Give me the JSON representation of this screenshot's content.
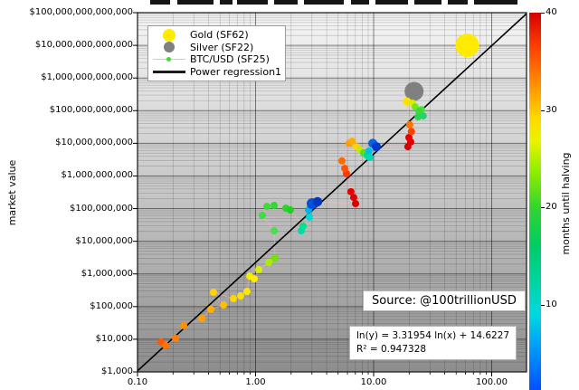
{
  "chart_data": {
    "type": "scatter",
    "x_scale": "log",
    "y_scale": "log",
    "xlim": [
      0.1,
      197
    ],
    "ylim": [
      1000,
      100000000000000
    ],
    "xlabel": "",
    "ylabel": "market value",
    "grid": true,
    "x_ticks": {
      "values": [
        0.1,
        1,
        10,
        100
      ],
      "labels": [
        "0.10",
        "1.00",
        "10.00",
        "100.00"
      ]
    },
    "y_ticks": {
      "values": [
        1000,
        10000,
        100000,
        1000000,
        10000000,
        100000000,
        1000000000,
        10000000000,
        100000000000,
        1000000000000,
        10000000000000,
        100000000000000
      ],
      "labels": [
        "$1,000",
        "$10,000",
        "$100,000",
        "$1,000,000",
        "$10,000,000",
        "$100,000,000",
        "$1,000,000,000",
        "$10,000,000,000",
        "$100,000,000,000",
        "$1,000,000,000,000",
        "$10,000,000,000,000",
        "$100,000,000,000,000"
      ]
    },
    "series": [
      {
        "name": "Gold (SF62)",
        "type": "point",
        "color": "#ffeb00",
        "size": 13,
        "sf": 62,
        "market_value": 10000000000000.0
      },
      {
        "name": "Silver (SF22)",
        "type": "point",
        "color": "#808080",
        "size": 10.5,
        "sf": 22,
        "market_value": 390000000000.0
      },
      {
        "name": "BTC/USD (SF25)",
        "type": "monthly-points",
        "color_by": "months until halving",
        "connector_color": "#ffb6b6",
        "points": [
          [
            0.158,
            8200.0,
            "#ff5a00"
          ],
          [
            0.173,
            6400.0,
            "#ff7300"
          ],
          [
            0.21,
            10600.0,
            "#ff8000"
          ],
          [
            0.246,
            26000.0,
            "#ff9000"
          ],
          [
            0.35,
            43000.0,
            "#ffa200"
          ],
          [
            0.418,
            82000.0,
            "#ffae00"
          ],
          [
            0.535,
            112000.0,
            "#ffc000"
          ],
          [
            0.44,
            274000.0,
            "#ffd200"
          ],
          [
            0.649,
            175000.0,
            "#ffd800"
          ],
          [
            0.748,
            212000.0,
            "#ffe000"
          ],
          [
            0.846,
            290000.0,
            "#ffe800"
          ],
          [
            0.892,
            860000.0,
            "#f2ee00"
          ],
          [
            0.974,
            710000.0,
            "#ffee00"
          ],
          [
            1.064,
            1350000.0,
            "#d8f000"
          ],
          [
            1.292,
            2250000.0,
            "#a8ee00"
          ],
          [
            1.462,
            3100000.0,
            "#70e400"
          ],
          [
            1.436,
            21000000.0,
            "#48e048"
          ],
          [
            1.141,
            62000000.0,
            "#40dd40"
          ],
          [
            1.247,
            117000000.0,
            "#38dd38"
          ],
          [
            1.436,
            125000000.0,
            "#30d830"
          ],
          [
            1.806,
            103000000.0,
            "#28d428"
          ],
          [
            1.972,
            91000000.0,
            "#20d020"
          ],
          [
            2.525,
            29000000.0,
            "#00e088"
          ],
          [
            2.437,
            21000000.0,
            "#00dda0"
          ],
          [
            2.857,
            55000000.0,
            "#00d8d8"
          ],
          [
            2.807,
            91000000.0,
            "#00b0e8"
          ],
          [
            3.012,
            142000000.0,
            "#0050e0",
            6
          ],
          [
            3.345,
            162000000.0,
            "#0038c0",
            5.2
          ],
          [
            7.03,
            142000000.0,
            "#d80000"
          ],
          [
            6.78,
            220000000.0,
            "#e00000"
          ],
          [
            6.42,
            330000000.0,
            "#e80000"
          ],
          [
            5.89,
            1170000000.0,
            "#ff3800"
          ],
          [
            5.69,
            1700000000.0,
            "#ff5200"
          ],
          [
            5.39,
            2900000000.0,
            "#ff6a00"
          ],
          [
            6.21,
            10000000000.0,
            "#ff9a00"
          ],
          [
            6.55,
            11600000000.0,
            "#ffae00"
          ],
          [
            7.16,
            7900000000.0,
            "#ffd400"
          ],
          [
            7.66,
            6200000000.0,
            "#c8e800"
          ],
          [
            8.21,
            5100000000.0,
            "#58e020"
          ],
          [
            8.8,
            4200000000.0,
            "#00e080"
          ],
          [
            9.27,
            3700000000.0,
            "#00d8b8"
          ],
          [
            9.11,
            5800000000.0,
            "#00c0e0"
          ],
          [
            9.84,
            10000000000.0,
            "#0064e8",
            5
          ],
          [
            10.55,
            7900000000.0,
            "#0038c8",
            5
          ],
          [
            19.5,
            7900000000.0,
            "#d60000"
          ],
          [
            20.6,
            11000000000.0,
            "#df0000"
          ],
          [
            19.9,
            15000000000.0,
            "#e80000"
          ],
          [
            20.9,
            23000000000.0,
            "#ff4000"
          ],
          [
            20.2,
            37000000000.0,
            "#ff7400"
          ],
          [
            19.2,
            190000000000.0,
            "#ffe200",
            4.6
          ],
          [
            21.3,
            170000000000.0,
            "#d2f000"
          ],
          [
            22.5,
            130000000000.0,
            "#6ee818"
          ],
          [
            25.4,
            107000000000.0,
            "#4ce030"
          ],
          [
            24.2,
            95000000000.0,
            "#38dd38"
          ],
          [
            26.3,
            69000000000.0,
            "#28d070"
          ],
          [
            23.8,
            65000000000.0,
            "#2cd455"
          ]
        ]
      }
    ],
    "regression": {
      "label": "Power regression1",
      "a": 3.31954,
      "b": 14.6227,
      "equation": "ln(y) = 3.31954 ln(x) + 14.6227",
      "r2": "R² = 0.947328",
      "color": "#000000"
    },
    "annotations": {
      "source": "Source: @100trillionUSD"
    },
    "colorbar": {
      "label": "months until halving",
      "min": 0,
      "max": 40,
      "ticks": [
        40,
        30,
        20,
        10
      ],
      "gradient": [
        [
          "#d80000",
          0
        ],
        [
          "#ff4600",
          10
        ],
        [
          "#ff9800",
          20
        ],
        [
          "#ffd800",
          28
        ],
        [
          "#e8f400",
          34
        ],
        [
          "#90ee00",
          42
        ],
        [
          "#30d430",
          52
        ],
        [
          "#00cc66",
          62
        ],
        [
          "#00d4a8",
          72
        ],
        [
          "#00d8e0",
          80
        ],
        [
          "#00a0f8",
          88
        ],
        [
          "#0050ff",
          100
        ]
      ]
    }
  },
  "legend": {
    "items": [
      {
        "label": "Gold (SF62)"
      },
      {
        "label": "Silver (SF22)"
      },
      {
        "label": "BTC/USD (SF25)"
      },
      {
        "label": "Power regression1"
      }
    ]
  }
}
